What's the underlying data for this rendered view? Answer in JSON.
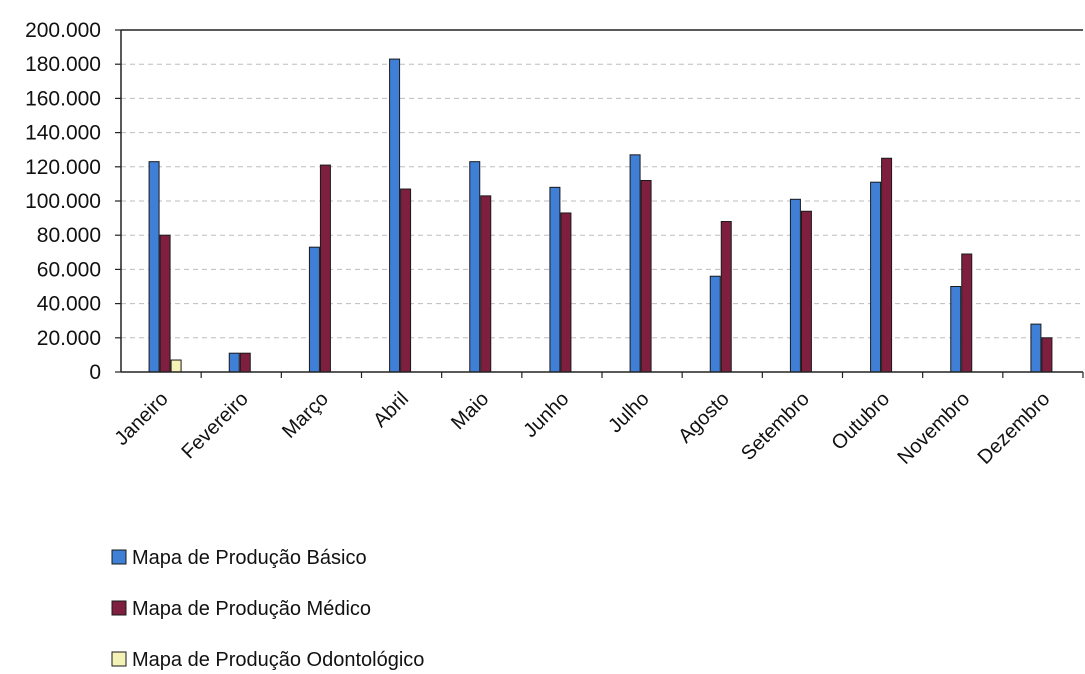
{
  "chart_data": {
    "type": "bar",
    "title": "",
    "xlabel": "",
    "ylabel": "",
    "ylim": [
      0,
      200000
    ],
    "yticks": [
      0,
      20000,
      40000,
      60000,
      80000,
      100000,
      120000,
      140000,
      160000,
      180000,
      200000
    ],
    "ytick_labels": [
      "0",
      "20.000",
      "40.000",
      "60.000",
      "80.000",
      "100.000",
      "120.000",
      "140.000",
      "160.000",
      "180.000",
      "200.000"
    ],
    "grid": true,
    "legend_position": "bottom-left",
    "categories": [
      "Janeiro",
      "Fevereiro",
      "Março",
      "Abril",
      "Maio",
      "Junho",
      "Julho",
      "Agosto",
      "Setembro",
      "Outubro",
      "Novembro",
      "Dezembro"
    ],
    "series": [
      {
        "name": "Mapa de Produção Básico",
        "color": "#3f7fd6",
        "values": [
          123000,
          11000,
          73000,
          183000,
          123000,
          108000,
          127000,
          56000,
          101000,
          111000,
          50000,
          28000
        ]
      },
      {
        "name": "Mapa de Produção Médico",
        "color": "#7f1f3f",
        "values": [
          80000,
          11000,
          121000,
          107000,
          103000,
          93000,
          112000,
          88000,
          94000,
          125000,
          69000,
          20000
        ]
      },
      {
        "name": "Mapa de Produção Odontológico",
        "color": "#f5f2b8",
        "values": [
          7000,
          0,
          0,
          0,
          0,
          0,
          0,
          0,
          0,
          0,
          0,
          0
        ]
      }
    ]
  }
}
